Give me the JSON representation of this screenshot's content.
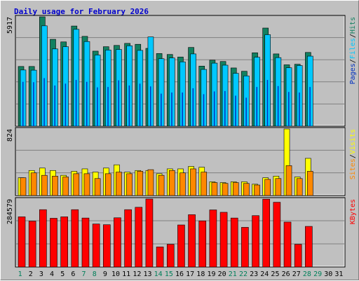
{
  "chart_data": {
    "type": "bar",
    "title": "Daily usage for February 2026",
    "categories": [
      "1",
      "2",
      "3",
      "4",
      "5",
      "6",
      "7",
      "8",
      "9",
      "10",
      "11",
      "12",
      "13",
      "14",
      "15",
      "16",
      "17",
      "18",
      "19",
      "20",
      "21",
      "22",
      "23",
      "24",
      "25",
      "26",
      "27",
      "28",
      "29",
      "30",
      "31"
    ],
    "weekend_days": [
      "1",
      "7",
      "8",
      "14",
      "15",
      "21",
      "22",
      "28",
      "29"
    ],
    "colors": {
      "title": "#0000cc",
      "hits": "#128060",
      "files": "#00c8ff",
      "pages": "#0030c0",
      "visits": "#ffff00",
      "sites": "#ff8800",
      "kbytes": "#ff0000",
      "weekday_label": "#000000",
      "weekend_label": "#00805a"
    },
    "panels": [
      {
        "id": "hits",
        "max_label": "5917",
        "ylim": [
          0,
          5917
        ],
        "legend": [
          "Pages",
          "Files",
          "Hits"
        ],
        "series": [
          {
            "name": "Hits",
            "values": [
              3230,
              3230,
              5917,
              4700,
              4560,
              5420,
              4860,
              4060,
              4300,
              4370,
              4480,
              4430,
              4210,
              3930,
              3880,
              3740,
              4260,
              3250,
              3570,
              3500,
              3150,
              2970,
              3970,
              5310,
              3910,
              3320,
              3350,
              3990,
              0,
              0,
              0
            ]
          },
          {
            "name": "Files",
            "values": [
              3040,
              3030,
              5430,
              4180,
              4300,
              5240,
              4580,
              3850,
              4120,
              4150,
              4350,
              4100,
              4830,
              3650,
              3690,
              3480,
              3910,
              3070,
              3410,
              3300,
              2860,
              2720,
              3730,
              4950,
              3710,
              3160,
              3280,
              3790,
              0,
              0,
              0
            ]
          },
          {
            "name": "Pages",
            "values": [
              2400,
              2380,
              2600,
              2200,
              2300,
              2500,
              2400,
              2100,
              2120,
              2480,
              2200,
              2300,
              2150,
              1760,
              1820,
              1820,
              2050,
              1730,
              1880,
              1900,
              1650,
              1540,
              2120,
              2500,
              2170,
              1850,
              1820,
              2120,
              0,
              0,
              0
            ]
          }
        ]
      },
      {
        "id": "visits",
        "max_label": "824",
        "ylim": [
          0,
          824
        ],
        "legend": [
          "Sites",
          "Visits"
        ],
        "series": [
          {
            "name": "Visits",
            "values": [
              220,
              310,
              340,
              310,
              250,
              300,
              330,
              290,
              340,
              380,
              290,
              310,
              310,
              270,
              330,
              330,
              360,
              350,
              170,
              160,
              170,
              170,
              140,
              220,
              240,
              824,
              230,
              460,
              0,
              0,
              0
            ]
          },
          {
            "name": "Sites",
            "values": [
              220,
              280,
              250,
              240,
              230,
              270,
              270,
              210,
              270,
              290,
              270,
              300,
              320,
              250,
              310,
              280,
              330,
              290,
              160,
              150,
              160,
              150,
              130,
              200,
              210,
              370,
              210,
              300,
              0,
              0,
              0
            ]
          }
        ]
      },
      {
        "id": "kbytes",
        "max_label": "284579",
        "ylim": [
          0,
          284579
        ],
        "legend": [
          "KBytes"
        ],
        "series": [
          {
            "name": "KBytes",
            "values": [
              210000,
              192000,
              240000,
              204000,
              210000,
              240000,
              205000,
              180000,
              177000,
              206000,
              240000,
              250000,
              284579,
              84000,
              95000,
              176000,
              219000,
              193000,
              239000,
              229000,
              205000,
              166000,
              215000,
              284000,
              271000,
              188000,
              95000,
              170000,
              0,
              0,
              0
            ]
          }
        ]
      }
    ]
  }
}
